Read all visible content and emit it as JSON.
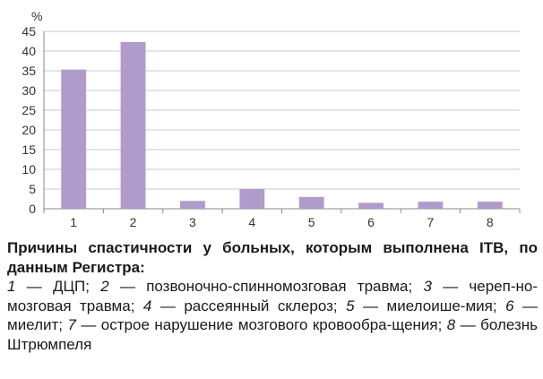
{
  "chart_data": {
    "type": "bar",
    "ylabel": "%",
    "categories": [
      "1",
      "2",
      "3",
      "4",
      "5",
      "6",
      "7",
      "8"
    ],
    "values": [
      35.3,
      42.3,
      2.0,
      5.0,
      3.0,
      1.5,
      1.8,
      1.8
    ],
    "ylim": [
      0,
      45
    ],
    "yticks": [
      "0",
      "5",
      "10",
      "15",
      "20",
      "25",
      "30",
      "35",
      "40",
      "45"
    ],
    "grid": true,
    "bar_color": "#b09cca"
  },
  "caption": {
    "title": "Причины спастичности у больных, которым выполнена ITB, по данным Регистра:",
    "items": [
      {
        "num": "1",
        "text": " — ДЦП; "
      },
      {
        "num": "2",
        "text": " — позвоночно-спинномозговая травма; "
      },
      {
        "num": "3",
        "text": " — череп-но-мозговая травма; "
      },
      {
        "num": "4",
        "text": " — рассеянный склероз; "
      },
      {
        "num": "5",
        "text": " — миелоише-мия; "
      },
      {
        "num": "6",
        "text": " — миелит; "
      },
      {
        "num": "7",
        "text": " — острое нарушение мозгового кровообра-щения; "
      },
      {
        "num": "8",
        "text": " — болезнь Штрюмпеля"
      }
    ]
  }
}
